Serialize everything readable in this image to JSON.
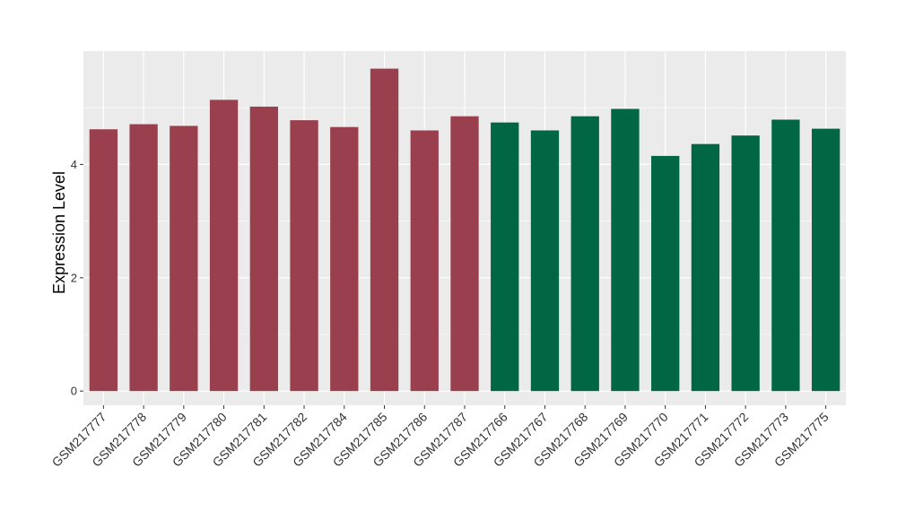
{
  "chart_data": {
    "type": "bar",
    "title": "",
    "xlabel": "",
    "ylabel": "Expression Level",
    "ylim": [
      -0.25,
      6.0
    ],
    "yticks": [
      0,
      2,
      4
    ],
    "grid": true,
    "legend": "none",
    "colors": {
      "group1": "#9a3f4e",
      "group2": "#016644",
      "panel": "#ebebeb",
      "grid": "#ffffff"
    },
    "categories": [
      "GSM217777",
      "GSM217778",
      "GSM217779",
      "GSM217780",
      "GSM217781",
      "GSM217782",
      "GSM217784",
      "GSM217785",
      "GSM217786",
      "GSM217787",
      "GSM217766",
      "GSM217767",
      "GSM217768",
      "GSM217769",
      "GSM217770",
      "GSM217771",
      "GSM217772",
      "GSM217773",
      "GSM217775"
    ],
    "values": [
      4.62,
      4.71,
      4.68,
      5.14,
      5.02,
      4.78,
      4.66,
      5.69,
      4.6,
      4.85,
      4.74,
      4.6,
      4.85,
      4.98,
      4.15,
      4.36,
      4.51,
      4.79,
      4.63
    ],
    "groups": [
      1,
      1,
      1,
      1,
      1,
      1,
      1,
      1,
      1,
      1,
      2,
      2,
      2,
      2,
      2,
      2,
      2,
      2,
      2
    ]
  }
}
